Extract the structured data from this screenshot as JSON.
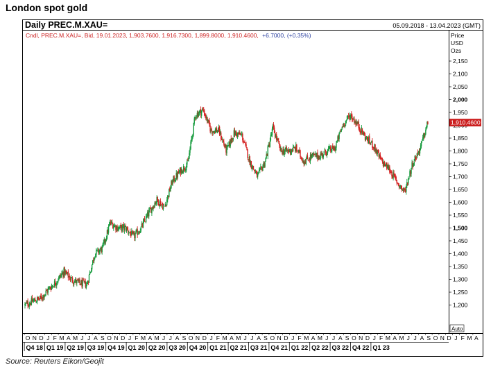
{
  "page": {
    "heading": "London spot gold",
    "source": "Source: Reuters Eikon/Geojit"
  },
  "chart_data": {
    "type": "candlestick",
    "title": "Daily PREC.M.XAU=",
    "date_range": "05.09.2018 - 13.04.2023 (GMT)",
    "info": {
      "prefix": "Cndl, PREC.M.XAU=, Bid, 19.01.2023, 1,903.7600, 1,916.7300, 1,899.8000, 1,910.4600,",
      "change": "+6.7000, (+0.35%)"
    },
    "y_axis_title": [
      "Price",
      "USD",
      "Ozs"
    ],
    "ylim": [
      1150,
      2150
    ],
    "y_ticks": [
      {
        "value": 2150,
        "label": "2,150",
        "bold": false
      },
      {
        "value": 2100,
        "label": "2,100",
        "bold": false
      },
      {
        "value": 2050,
        "label": "2,050",
        "bold": false
      },
      {
        "value": 2000,
        "label": "2,000",
        "bold": true
      },
      {
        "value": 1950,
        "label": "1,950",
        "bold": false
      },
      {
        "value": 1900,
        "label": "1,900",
        "bold": false
      },
      {
        "value": 1850,
        "label": "1,850",
        "bold": false
      },
      {
        "value": 1800,
        "label": "1,800",
        "bold": false
      },
      {
        "value": 1750,
        "label": "1,750",
        "bold": false
      },
      {
        "value": 1700,
        "label": "1,700",
        "bold": false
      },
      {
        "value": 1650,
        "label": "1,650",
        "bold": false
      },
      {
        "value": 1600,
        "label": "1,600",
        "bold": false
      },
      {
        "value": 1550,
        "label": "1,550",
        "bold": false
      },
      {
        "value": 1500,
        "label": "1,500",
        "bold": true
      },
      {
        "value": 1450,
        "label": "1,450",
        "bold": false
      },
      {
        "value": 1400,
        "label": "1,400",
        "bold": false
      },
      {
        "value": 1350,
        "label": "1,350",
        "bold": false
      },
      {
        "value": 1300,
        "label": "1,300",
        "bold": false
      },
      {
        "value": 1250,
        "label": "1,250",
        "bold": false
      },
      {
        "value": 1200,
        "label": "1,200",
        "bold": false
      }
    ],
    "last_price": {
      "value": 1910.46,
      "label": "1,910.4600"
    },
    "auto_label": "Auto",
    "x_months": [
      "O",
      "N",
      "D",
      "J",
      "F",
      "M",
      "A",
      "M",
      "J",
      "J",
      "A",
      "S",
      "O",
      "N",
      "D",
      "J",
      "F",
      "M",
      "A",
      "M",
      "J",
      "J",
      "A",
      "S",
      "O",
      "N",
      "D",
      "J",
      "F",
      "M",
      "A",
      "M",
      "J",
      "J",
      "A",
      "S",
      "O",
      "N",
      "D",
      "J",
      "F",
      "M",
      "A",
      "M",
      "J",
      "J",
      "A",
      "S",
      "O",
      "N",
      "D",
      "J",
      "F",
      "M",
      "A",
      "M",
      "J",
      "J",
      "A",
      "S",
      "O",
      "N",
      "D",
      "J",
      "F",
      "M",
      "A"
    ],
    "x_quarters": [
      "Q4 18",
      "Q1 19",
      "Q2 19",
      "Q3 19",
      "Q4 19",
      "Q1 20",
      "Q2 20",
      "Q3 20",
      "Q4 20",
      "Q1 21",
      "Q2 21",
      "Q3 21",
      "Q4 21",
      "Q1 22",
      "Q2 22",
      "Q3 22",
      "Q4 22",
      "Q1 23"
    ],
    "series": [
      {
        "kind": "monthly-close-path",
        "x": [
          "2018-09",
          "2018-10",
          "2018-11",
          "2018-12",
          "2019-01",
          "2019-02",
          "2019-03",
          "2019-04",
          "2019-05",
          "2019-06",
          "2019-07",
          "2019-08",
          "2019-09",
          "2019-10",
          "2019-11",
          "2019-12",
          "2020-01",
          "2020-02",
          "2020-03",
          "2020-04",
          "2020-05",
          "2020-06",
          "2020-07",
          "2020-08",
          "2020-09",
          "2020-10",
          "2020-11",
          "2020-12",
          "2021-01",
          "2021-02",
          "2021-03",
          "2021-04",
          "2021-05",
          "2021-06",
          "2021-07",
          "2021-08",
          "2021-09",
          "2021-10",
          "2021-11",
          "2021-12",
          "2022-01",
          "2022-02",
          "2022-03",
          "2022-04",
          "2022-05",
          "2022-06",
          "2022-07",
          "2022-08",
          "2022-09",
          "2022-10",
          "2022-11",
          "2022-12",
          "2023-01"
        ],
        "values": [
          1200,
          1215,
          1225,
          1260,
          1290,
          1330,
          1300,
          1285,
          1280,
          1400,
          1420,
          1520,
          1500,
          1500,
          1465,
          1500,
          1560,
          1610,
          1580,
          1680,
          1720,
          1750,
          1940,
          1960,
          1880,
          1880,
          1800,
          1870,
          1860,
          1760,
          1700,
          1760,
          1890,
          1800,
          1800,
          1810,
          1760,
          1780,
          1780,
          1800,
          1810,
          1900,
          1940,
          1900,
          1850,
          1820,
          1760,
          1730,
          1680,
          1640,
          1750,
          1810,
          1910
        ]
      }
    ]
  }
}
